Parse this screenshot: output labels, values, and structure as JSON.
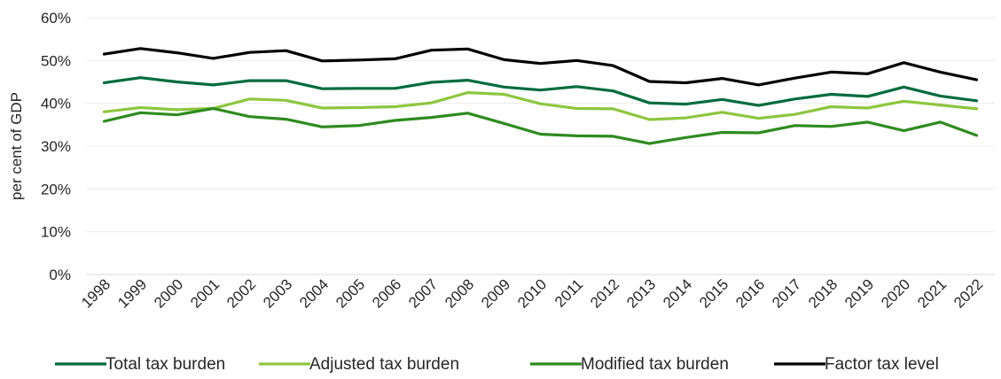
{
  "chart_data": {
    "type": "line",
    "title": "",
    "xlabel": "",
    "ylabel": "per cent of GDP",
    "ylim": [
      0,
      60
    ],
    "y_ticks": [
      0,
      10,
      20,
      30,
      40,
      50,
      60
    ],
    "y_tick_labels": [
      "0%",
      "10%",
      "20%",
      "30%",
      "40%",
      "50%",
      "60%"
    ],
    "grid": true,
    "legend_position": "bottom",
    "x": [
      "1998",
      "1999",
      "2000",
      "2001",
      "2002",
      "2003",
      "2004",
      "2005",
      "2006",
      "2007",
      "2008",
      "2009",
      "2010",
      "2011",
      "2012",
      "2013",
      "2014",
      "2015",
      "2016",
      "2017",
      "2018",
      "2019",
      "2020",
      "2021",
      "2022"
    ],
    "series": [
      {
        "name": "Total tax burden",
        "color": "#006b3f",
        "values": [
          44.8,
          46.0,
          45.0,
          44.3,
          45.3,
          45.3,
          43.4,
          43.5,
          43.5,
          44.9,
          45.4,
          43.8,
          43.1,
          43.9,
          42.9,
          40.1,
          39.8,
          40.9,
          39.5,
          41.0,
          42.1,
          41.6,
          43.8,
          41.7,
          40.6
        ]
      },
      {
        "name": "Adjusted tax burden",
        "color": "#8dc63f",
        "values": [
          38.0,
          39.0,
          38.5,
          38.8,
          41.0,
          40.7,
          38.9,
          39.0,
          39.2,
          40.1,
          42.5,
          42.1,
          39.9,
          38.8,
          38.7,
          36.2,
          36.6,
          37.9,
          36.5,
          37.4,
          39.2,
          38.9,
          40.5,
          39.6,
          38.7
        ]
      },
      {
        "name": "Modified tax burden",
        "color": "#2e8b1f",
        "values": [
          35.8,
          37.8,
          37.3,
          38.8,
          36.9,
          36.3,
          34.5,
          34.8,
          36.0,
          36.7,
          37.7,
          35.3,
          32.8,
          32.4,
          32.3,
          30.6,
          32.0,
          33.2,
          33.1,
          34.8,
          34.6,
          35.6,
          33.6,
          35.6,
          32.5
        ]
      },
      {
        "name": "Factor tax level",
        "color": "#000000",
        "values": [
          51.5,
          52.8,
          51.8,
          50.5,
          51.9,
          52.3,
          49.9,
          50.1,
          50.4,
          52.4,
          52.7,
          50.2,
          49.3,
          50.0,
          48.8,
          45.1,
          44.8,
          45.8,
          44.3,
          45.9,
          47.3,
          46.9,
          49.5,
          47.3,
          45.5
        ]
      }
    ]
  }
}
